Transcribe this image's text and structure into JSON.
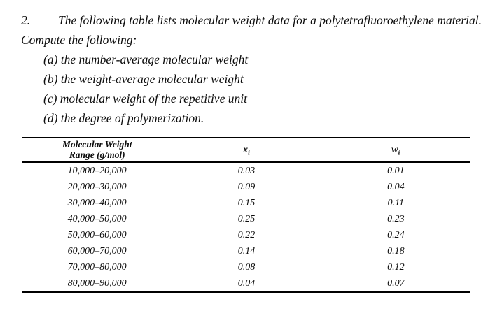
{
  "document": {
    "problem_number": "2.",
    "intro": "The following table lists molecular weight data for a polytetrafluoroethylene material.",
    "compute_line": "Compute the following:",
    "items": [
      "(a) the number-average molecular weight",
      "(b) the weight-average molecular weight",
      "(c) molecular weight of the repetitive unit",
      "(d) the degree of polymerization."
    ]
  },
  "table": {
    "headers": {
      "col1": [
        "Molecular Weight",
        "Range (g/mol)"
      ],
      "col2": {
        "base": "x",
        "sub": "i"
      },
      "col3": {
        "base": "w",
        "sub": "i"
      }
    },
    "rows": [
      {
        "range": "10,000–20,000",
        "xi": "0.03",
        "wi": "0.01"
      },
      {
        "range": "20,000–30,000",
        "xi": "0.09",
        "wi": "0.04"
      },
      {
        "range": "30,000–40,000",
        "xi": "0.15",
        "wi": "0.11"
      },
      {
        "range": "40,000–50,000",
        "xi": "0.25",
        "wi": "0.23"
      },
      {
        "range": "50,000–60,000",
        "xi": "0.22",
        "wi": "0.24"
      },
      {
        "range": "60,000–70,000",
        "xi": "0.14",
        "wi": "0.18"
      },
      {
        "range": "70,000–80,000",
        "xi": "0.08",
        "wi": "0.12"
      },
      {
        "range": "80,000–90,000",
        "xi": "0.04",
        "wi": "0.07"
      }
    ]
  }
}
